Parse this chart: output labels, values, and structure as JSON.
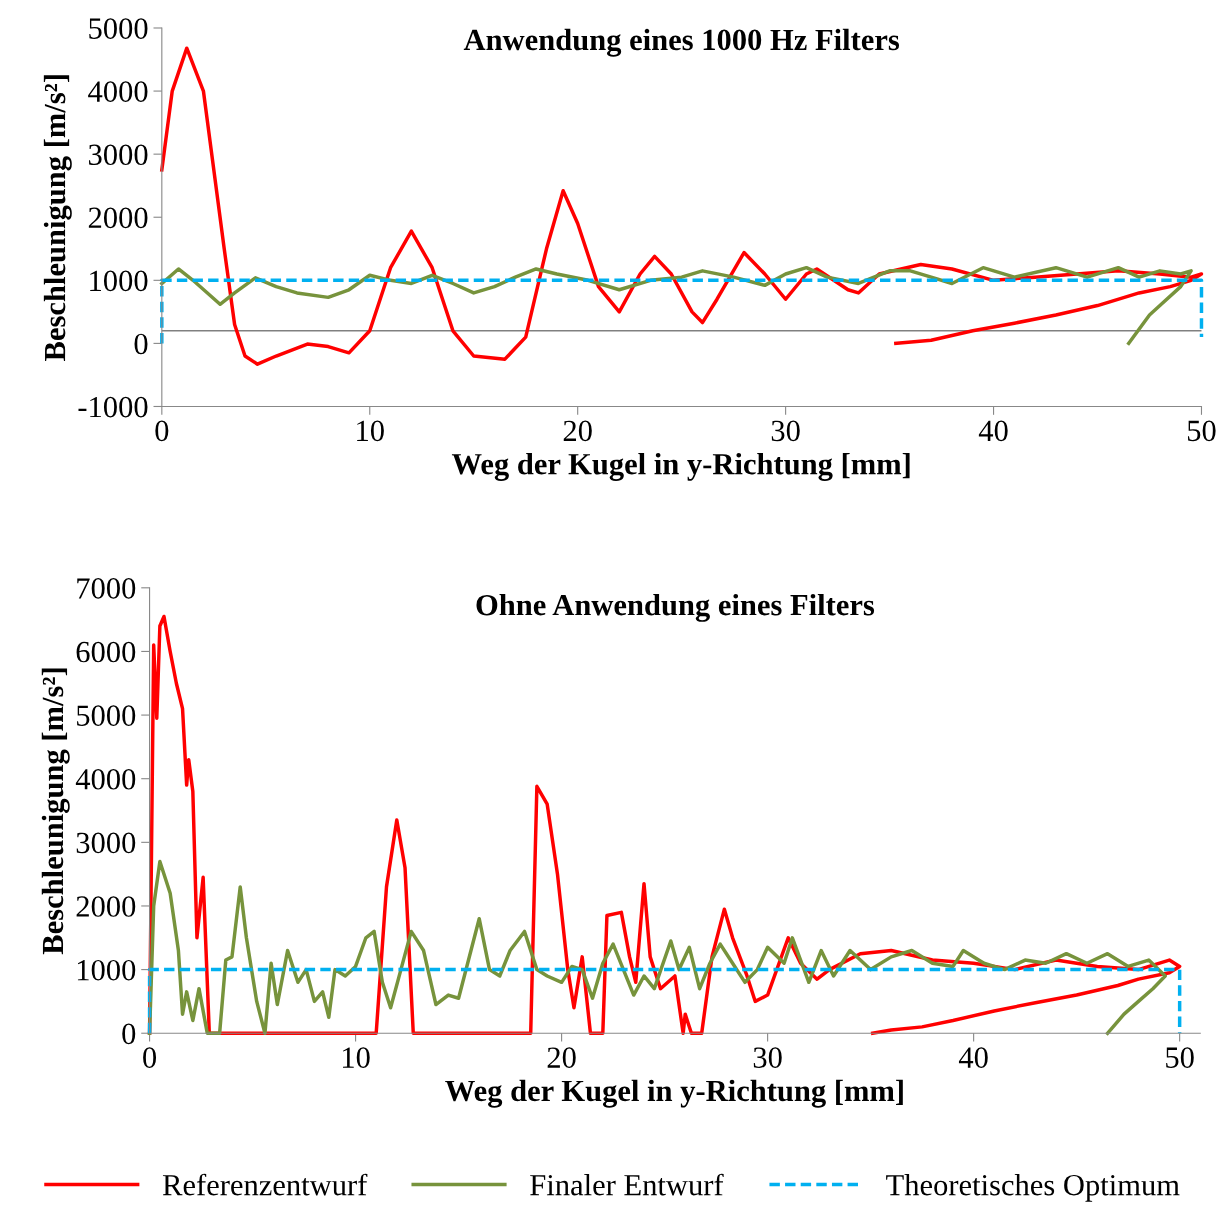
{
  "chart_data": [
    {
      "type": "line",
      "title": "Anwendung eines 1000 Hz Filters",
      "xlabel": "Weg der Kugel in y-Richtung [mm]",
      "ylabel": "Beschleunigung [m/s²]",
      "xlim": [
        0,
        50
      ],
      "ylim": [
        -1000,
        5000
      ],
      "xticks": [
        0,
        10,
        20,
        30,
        40,
        50
      ],
      "yticks": [
        -1000,
        0,
        1000,
        2000,
        3000,
        4000,
        5000
      ],
      "grid": false,
      "legend": false,
      "marker": "none",
      "ref_lines": [
        {
          "axis": "y",
          "value": 200,
          "color": "#808080"
        }
      ],
      "series": [
        {
          "color": "#ff0000",
          "line_style": "solid",
          "x": [
            0,
            0.5,
            1.2,
            2,
            3,
            3.5,
            4,
            4.6,
            5.5,
            7,
            8,
            9,
            10,
            11,
            12,
            13,
            14,
            15,
            16.5,
            17.5,
            18.5,
            19.3,
            20,
            21,
            22,
            23,
            23.7,
            24.5,
            25.5,
            26,
            26.7,
            28,
            29,
            30,
            31,
            31.5,
            33,
            33.5,
            34.5,
            36.5,
            38,
            40,
            42,
            44,
            46,
            48,
            49.5,
            50,
            49.5,
            48.5,
            47,
            45,
            43,
            41,
            39,
            37,
            35.3
          ],
          "values": [
            2750,
            4000,
            4680,
            4000,
            1500,
            300,
            -200,
            -330,
            -200,
            -10,
            -50,
            -150,
            200,
            1200,
            1780,
            1200,
            200,
            -200,
            -250,
            100,
            1500,
            2420,
            1900,
            900,
            500,
            1100,
            1380,
            1100,
            500,
            330,
            700,
            1440,
            1100,
            700,
            1100,
            1180,
            850,
            800,
            1100,
            1250,
            1180,
            1000,
            1050,
            1100,
            1150,
            1100,
            1050,
            1100,
            1000,
            900,
            800,
            600,
            450,
            320,
            200,
            50,
            0
          ]
        },
        {
          "color": "#77933c",
          "line_style": "solid",
          "x": [
            0,
            0.8,
            1.5,
            2.8,
            3.5,
            4.5,
            5.5,
            6.5,
            8,
            9,
            10,
            11,
            12,
            13,
            14,
            15,
            16,
            17,
            18,
            19,
            20.5,
            22,
            23.5,
            25,
            26,
            27.5,
            29,
            30,
            31,
            32,
            33.5,
            35,
            36,
            37,
            38,
            39.5,
            41,
            43,
            44.5,
            46,
            47,
            48,
            49,
            49.5,
            49,
            48,
            47.5,
            46.5
          ],
          "values": [
            950,
            1180,
            1000,
            620,
            800,
            1040,
            900,
            800,
            730,
            850,
            1080,
            1000,
            950,
            1080,
            950,
            800,
            900,
            1050,
            1180,
            1100,
            1000,
            850,
            1000,
            1050,
            1150,
            1050,
            920,
            1100,
            1200,
            1050,
            950,
            1150,
            1150,
            1050,
            950,
            1200,
            1050,
            1200,
            1050,
            1200,
            1050,
            1150,
            1100,
            1150,
            900,
            600,
            450,
            0
          ]
        },
        {
          "color": "#00b0f0",
          "line_style": "dashed",
          "x": [
            0,
            0,
            50,
            50
          ],
          "values": [
            0,
            1000,
            1000,
            100
          ]
        }
      ]
    },
    {
      "type": "line",
      "title": "Ohne Anwendung eines Filters",
      "xlabel": "Weg der Kugel in y-Richtung [mm]",
      "ylabel": "Beschleunigung [m/s²]",
      "xlim": [
        0,
        51
      ],
      "ylim": [
        0,
        7000
      ],
      "xticks": [
        0,
        10,
        20,
        30,
        40,
        50
      ],
      "yticks": [
        0,
        1000,
        2000,
        3000,
        4000,
        5000,
        6000,
        7000
      ],
      "grid": false,
      "legend": "bottom",
      "marker": "none",
      "series": [
        {
          "name": "Referenzentwurf",
          "color": "#ff0000",
          "line_style": "solid",
          "x": [
            0,
            0.2,
            0.35,
            0.5,
            0.7,
            1,
            1.3,
            1.6,
            1.8,
            1.9,
            2.1,
            2.3,
            2.6,
            2.9,
            11,
            11.5,
            12,
            12.4,
            12.8,
            18.5,
            18.8,
            19.3,
            19.8,
            20.3,
            20.6,
            21,
            21.4,
            22,
            22.2,
            22.9,
            23.3,
            23.6,
            24,
            24.3,
            24.8,
            25.5,
            25.9,
            26,
            26.3,
            26.8,
            27.3,
            27.9,
            28.3,
            29,
            29.4,
            30,
            31,
            31.6,
            32.4,
            33,
            34.5,
            36,
            38,
            40,
            42,
            44,
            46,
            48,
            49.5,
            50,
            49.5,
            48,
            47,
            45,
            43,
            41,
            39,
            37.5,
            36,
            35.1
          ],
          "values": [
            0,
            6100,
            4950,
            6400,
            6550,
            6000,
            5500,
            5100,
            3900,
            4300,
            3800,
            1500,
            2450,
            0,
            0,
            2300,
            3350,
            2600,
            0,
            0,
            3880,
            3600,
            2500,
            1000,
            400,
            1200,
            0,
            0,
            1850,
            1900,
            1200,
            800,
            2350,
            1200,
            700,
            900,
            0,
            300,
            0,
            0,
            1200,
            1950,
            1500,
            900,
            500,
            600,
            1500,
            1100,
            850,
            1000,
            1250,
            1300,
            1150,
            1100,
            1000,
            1150,
            1050,
            1000,
            1150,
            1050,
            950,
            850,
            750,
            600,
            480,
            350,
            200,
            100,
            50,
            0
          ]
        },
        {
          "name": "Finaler Entwurf",
          "color": "#77933c",
          "line_style": "solid",
          "x": [
            0,
            0.2,
            0.5,
            1,
            1.4,
            1.6,
            1.8,
            2.1,
            2.4,
            2.8,
            3.4,
            3.7,
            4,
            4.4,
            4.7,
            5.2,
            5.6,
            5.9,
            6.2,
            6.7,
            7.2,
            7.6,
            8,
            8.4,
            8.7,
            9,
            9.5,
            10,
            10.5,
            10.9,
            11.3,
            11.7,
            12.2,
            12.7,
            13.3,
            13.9,
            14.5,
            15,
            16,
            16.5,
            17,
            17.5,
            18.2,
            18.8,
            19.3,
            20,
            20.5,
            21,
            21.5,
            22,
            22.5,
            23,
            23.5,
            24,
            24.5,
            25.3,
            25.7,
            26.2,
            26.7,
            27.2,
            27.7,
            28.3,
            28.9,
            29.5,
            30,
            30.8,
            31.2,
            32,
            32.6,
            33.2,
            34,
            35,
            36,
            37,
            38,
            39,
            39.5,
            40.5,
            41.5,
            42.5,
            43.5,
            44.5,
            45.5,
            46.5,
            47.5,
            48.5,
            49.3,
            48.7,
            48,
            47.3,
            46.5
          ],
          "values": [
            0,
            2000,
            2700,
            2200,
            1300,
            300,
            650,
            200,
            700,
            0,
            0,
            1150,
            1200,
            2300,
            1500,
            500,
            0,
            1100,
            450,
            1300,
            800,
            1000,
            500,
            650,
            250,
            1000,
            900,
            1050,
            1500,
            1600,
            800,
            400,
            1000,
            1600,
            1300,
            450,
            600,
            550,
            1800,
            1000,
            900,
            1300,
            1600,
            1000,
            900,
            800,
            1050,
            1000,
            550,
            1100,
            1400,
            1000,
            600,
            900,
            700,
            1450,
            1000,
            1350,
            700,
            1100,
            1400,
            1100,
            800,
            1000,
            1350,
            1100,
            1500,
            800,
            1300,
            900,
            1300,
            1000,
            1200,
            1300,
            1100,
            1050,
            1300,
            1100,
            1000,
            1150,
            1100,
            1250,
            1100,
            1250,
            1050,
            1150,
            900,
            700,
            500,
            300,
            0
          ]
        },
        {
          "name": "Theoretisches Optimum",
          "color": "#00b0f0",
          "line_style": "dashed",
          "x": [
            0,
            0,
            50,
            50
          ],
          "values": [
            0,
            1000,
            1000,
            0
          ]
        }
      ]
    }
  ]
}
